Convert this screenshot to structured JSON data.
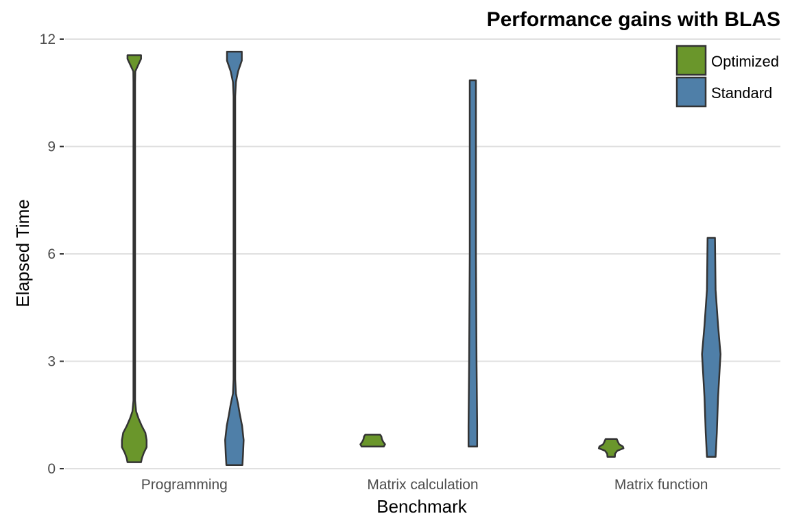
{
  "chart_data": {
    "type": "violin",
    "title": "Performance gains with BLAS",
    "xlabel": "Benchmark",
    "ylabel": "Elapsed Time",
    "ylim": [
      0,
      12
    ],
    "yticks": [
      0,
      3,
      6,
      9,
      12
    ],
    "grid": true,
    "legend_position": "top-right",
    "categories": [
      "Programming",
      "Matrix calculation",
      "Matrix function"
    ],
    "series": [
      {
        "name": "Optimized",
        "color": "#6a962b",
        "distributions": [
          {
            "min": 0.18,
            "max": 11.55,
            "density": [
              [
                0.18,
                0.55
              ],
              [
                0.3,
                0.62
              ],
              [
                0.45,
                0.78
              ],
              [
                0.6,
                1.0
              ],
              [
                0.8,
                1.0
              ],
              [
                1.0,
                0.9
              ],
              [
                1.2,
                0.6
              ],
              [
                1.4,
                0.35
              ],
              [
                1.6,
                0.15
              ],
              [
                1.9,
                0.05
              ],
              [
                2.5,
                0.02
              ],
              [
                10.8,
                0.02
              ],
              [
                11.1,
                0.08
              ],
              [
                11.3,
                0.35
              ],
              [
                11.45,
                0.55
              ],
              [
                11.55,
                0.55
              ]
            ]
          },
          {
            "min": 0.62,
            "max": 0.95,
            "density": [
              [
                0.62,
                0.9
              ],
              [
                0.68,
                1.0
              ],
              [
                0.75,
                0.85
              ],
              [
                0.82,
                0.75
              ],
              [
                0.9,
                0.7
              ],
              [
                0.95,
                0.6
              ]
            ]
          },
          {
            "min": 0.33,
            "max": 0.83,
            "density": [
              [
                0.33,
                0.3
              ],
              [
                0.42,
                0.32
              ],
              [
                0.5,
                0.5
              ],
              [
                0.57,
                1.0
              ],
              [
                0.62,
                0.95
              ],
              [
                0.68,
                0.65
              ],
              [
                0.75,
                0.55
              ],
              [
                0.83,
                0.45
              ]
            ]
          }
        ]
      },
      {
        "name": "Standard",
        "color": "#4f7fa8",
        "distributions": [
          {
            "min": 0.1,
            "max": 11.65,
            "density": [
              [
                0.1,
                0.65
              ],
              [
                0.4,
                0.7
              ],
              [
                0.8,
                0.75
              ],
              [
                1.2,
                0.62
              ],
              [
                1.5,
                0.45
              ],
              [
                1.8,
                0.3
              ],
              [
                2.1,
                0.12
              ],
              [
                2.5,
                0.04
              ],
              [
                10.4,
                0.04
              ],
              [
                10.8,
                0.12
              ],
              [
                11.1,
                0.3
              ],
              [
                11.4,
                0.6
              ],
              [
                11.65,
                0.6
              ]
            ]
          },
          {
            "min": 0.62,
            "max": 10.85,
            "density": [
              [
                0.62,
                0.35
              ],
              [
                1.2,
                0.35
              ],
              [
                3.0,
                0.3
              ],
              [
                6.0,
                0.25
              ],
              [
                10.85,
                0.25
              ]
            ]
          },
          {
            "min": 0.33,
            "max": 6.45,
            "density": [
              [
                0.33,
                0.35
              ],
              [
                1.0,
                0.45
              ],
              [
                2.0,
                0.55
              ],
              [
                3.2,
                0.75
              ],
              [
                4.0,
                0.55
              ],
              [
                5.0,
                0.35
              ],
              [
                6.45,
                0.3
              ]
            ]
          }
        ]
      }
    ]
  }
}
